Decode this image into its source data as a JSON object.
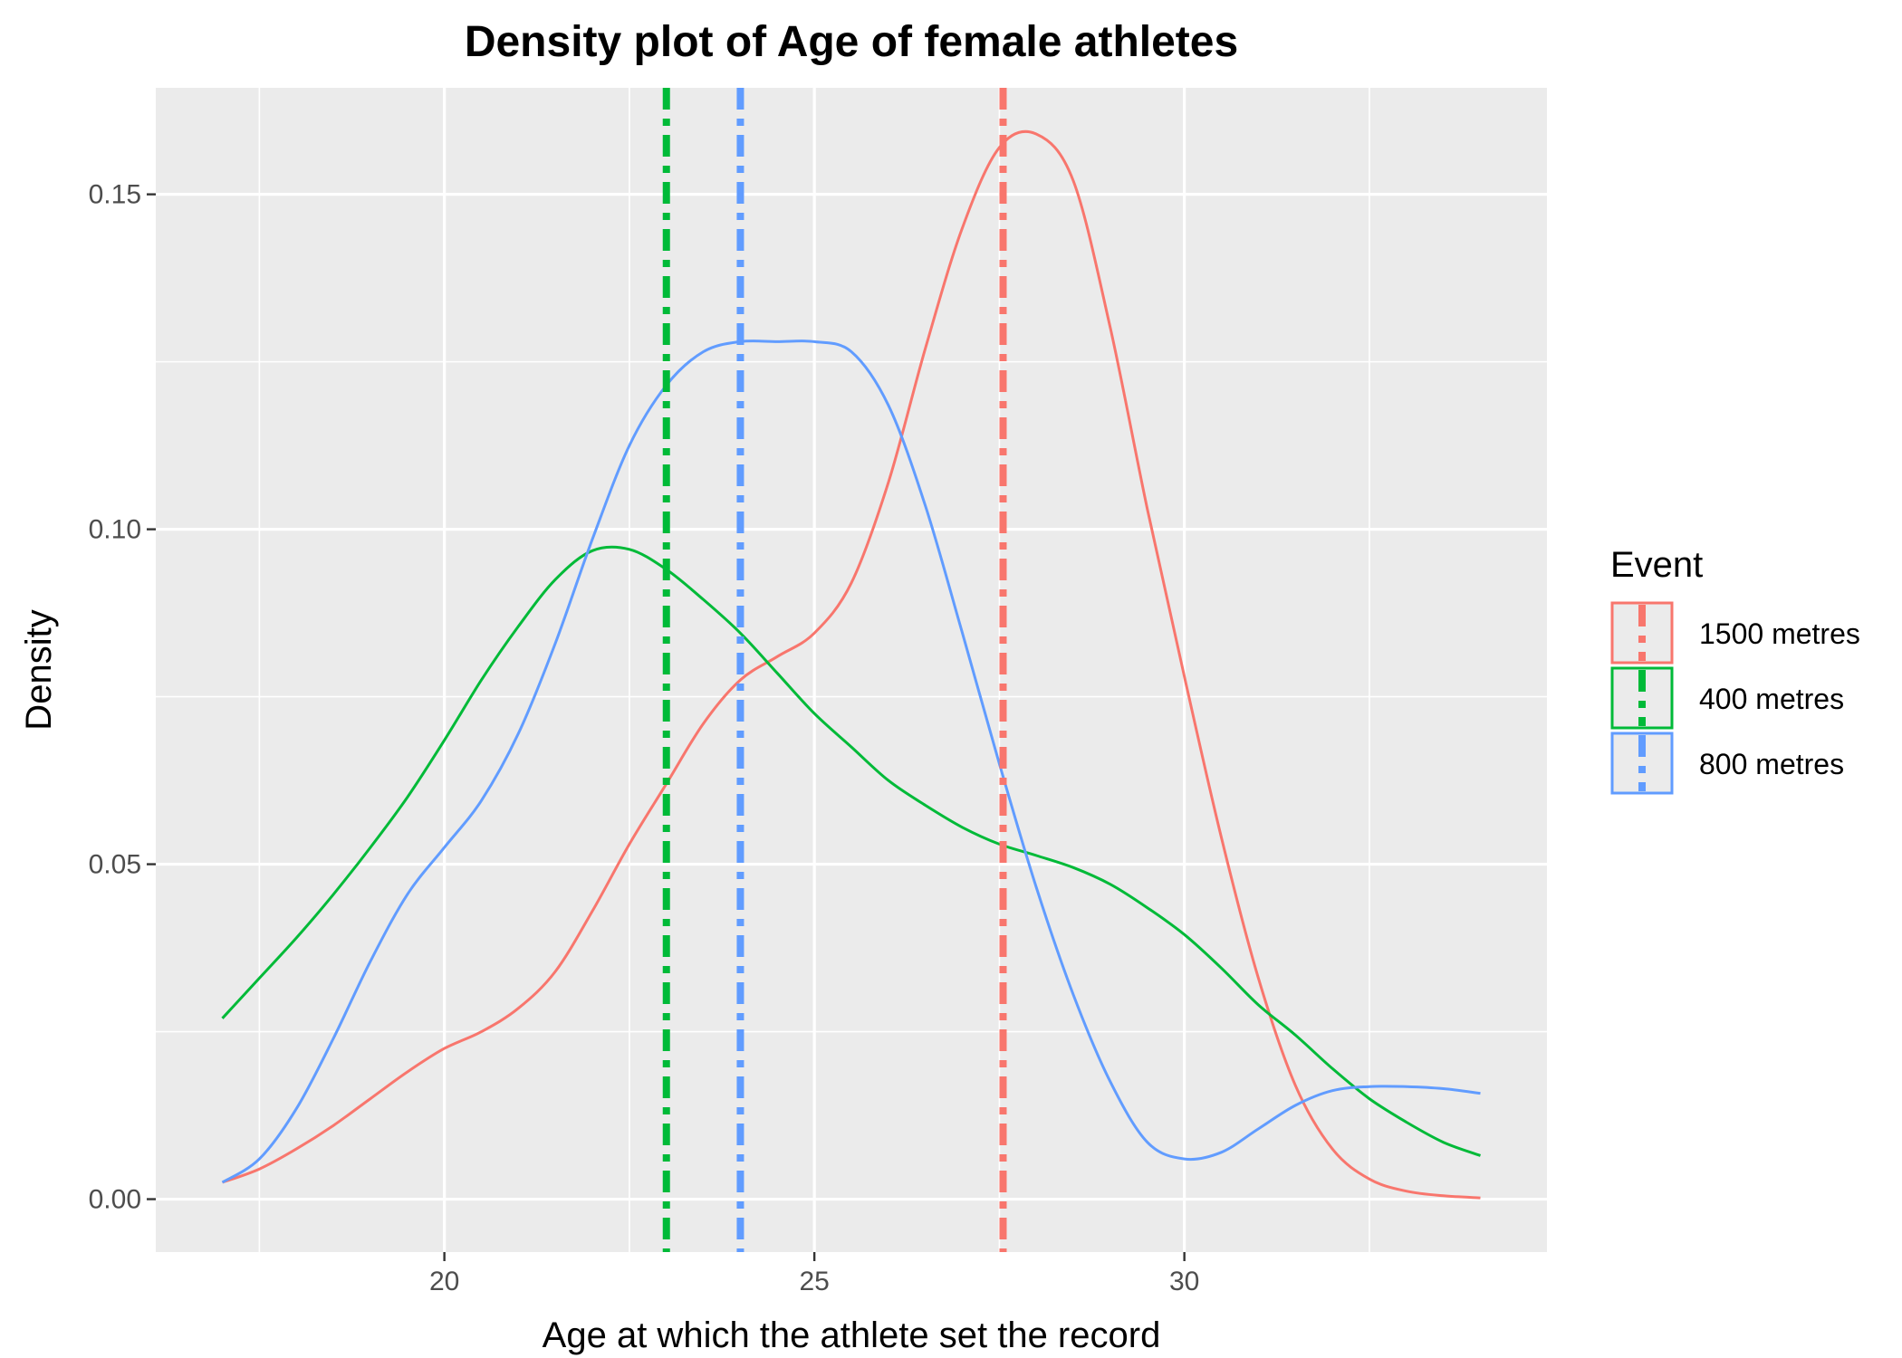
{
  "chart_data": {
    "type": "line",
    "title": "Density plot of Age of female athletes",
    "xlabel": "Age at which the athlete set the record",
    "ylabel": "Density",
    "xlim": [
      16.1,
      34.9
    ],
    "ylim": [
      -0.0079,
      0.1659
    ],
    "x_ticks": [
      20,
      25,
      30
    ],
    "x_tick_labels": [
      "20",
      "25",
      "30"
    ],
    "y_ticks": [
      0,
      0.05,
      0.1,
      0.15
    ],
    "y_tick_labels": [
      "0.00",
      "0.05",
      "0.10",
      "0.15"
    ],
    "grid": true,
    "panel_background": "#ebebeb",
    "grid_color": "#ffffff",
    "legend": {
      "title": "Event",
      "position": "right"
    },
    "series": [
      {
        "name": "1500 metres",
        "color": "#f8766d",
        "mean_line": 27.55,
        "x": [
          17,
          17.5,
          18,
          18.5,
          19,
          19.5,
          20,
          20.5,
          21,
          21.5,
          22,
          22.5,
          23,
          23.5,
          24,
          24.5,
          25,
          25.5,
          26,
          26.5,
          27,
          27.5,
          28,
          28.5,
          29,
          29.5,
          30,
          30.5,
          31,
          31.5,
          32,
          32.5,
          33,
          33.5,
          34
        ],
        "y": [
          0.0025,
          0.0045,
          0.0075,
          0.011,
          0.015,
          0.019,
          0.0225,
          0.025,
          0.0285,
          0.034,
          0.043,
          0.053,
          0.062,
          0.071,
          0.0775,
          0.081,
          0.0845,
          0.092,
          0.107,
          0.127,
          0.145,
          0.157,
          0.159,
          0.152,
          0.13,
          0.103,
          0.078,
          0.054,
          0.033,
          0.017,
          0.0075,
          0.003,
          0.0012,
          0.0005,
          0.0002
        ]
      },
      {
        "name": "400 metres",
        "color": "#00ba38",
        "mean_line": 23.0,
        "x": [
          17,
          17.5,
          18,
          18.5,
          19,
          19.5,
          20,
          20.5,
          21,
          21.5,
          22,
          22.5,
          23,
          23.5,
          24,
          24.5,
          25,
          25.5,
          26,
          26.5,
          27,
          27.5,
          28,
          28.5,
          29,
          29.5,
          30,
          30.5,
          31,
          31.5,
          32,
          32.5,
          33,
          33.5,
          34
        ],
        "y": [
          0.027,
          0.033,
          0.039,
          0.0455,
          0.0525,
          0.06,
          0.0685,
          0.0775,
          0.0855,
          0.0925,
          0.0968,
          0.097,
          0.094,
          0.0895,
          0.0845,
          0.0785,
          0.0725,
          0.0675,
          0.0625,
          0.0588,
          0.0555,
          0.053,
          0.0513,
          0.0495,
          0.047,
          0.0435,
          0.0395,
          0.0345,
          0.029,
          0.0245,
          0.0195,
          0.015,
          0.0115,
          0.0085,
          0.0065
        ]
      },
      {
        "name": "800 metres",
        "color": "#619cff",
        "mean_line": 24.0,
        "x": [
          17,
          17.5,
          18,
          18.5,
          19,
          19.5,
          20,
          20.5,
          21,
          21.5,
          22,
          22.5,
          23,
          23.5,
          24,
          24.5,
          25,
          25.5,
          26,
          26.5,
          27,
          27.5,
          28,
          28.5,
          29,
          29.5,
          30,
          30.5,
          31,
          31.5,
          32,
          32.5,
          33,
          33.5,
          34
        ],
        "y": [
          0.0025,
          0.006,
          0.0135,
          0.024,
          0.0355,
          0.0455,
          0.0525,
          0.0595,
          0.0695,
          0.083,
          0.0985,
          0.1125,
          0.1215,
          0.1265,
          0.128,
          0.128,
          0.128,
          0.1265,
          0.1185,
          0.1035,
          0.0845,
          0.065,
          0.0465,
          0.0305,
          0.0175,
          0.0085,
          0.006,
          0.007,
          0.0105,
          0.014,
          0.0162,
          0.0168,
          0.0168,
          0.0165,
          0.0158
        ]
      }
    ]
  }
}
